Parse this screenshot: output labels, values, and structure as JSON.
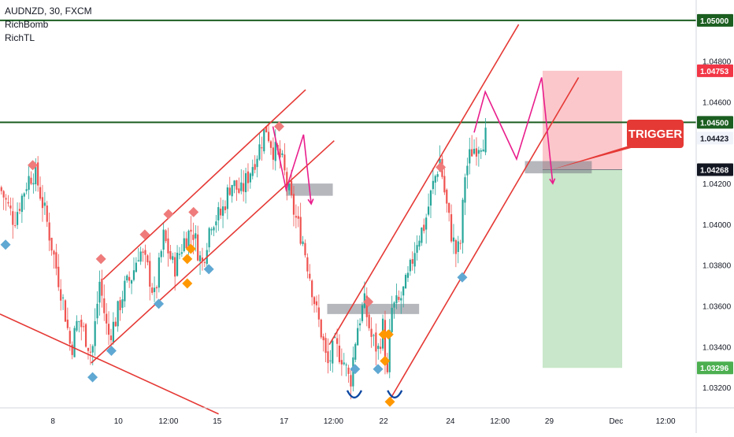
{
  "legend": {
    "symbol_line": "AUDNZD, 30, FXCM",
    "indicator_1": "RichBomb",
    "indicator_2": "RichTL"
  },
  "annotation": {
    "trigger_label": "TRIGGER"
  },
  "chart_data": {
    "type": "candlestick",
    "symbol": "AUDNZD",
    "timeframe": "30",
    "source": "FXCM",
    "ylim": [
      1.031,
      1.051
    ],
    "y_ticks": [
      1.032,
      1.034,
      1.036,
      1.038,
      1.04,
      1.042,
      1.046,
      1.048
    ],
    "y_tick_labels": [
      "1.03200",
      "1.03400",
      "1.03600",
      "1.03800",
      "1.04000",
      "1.04200",
      "1.04600",
      "1.04800"
    ],
    "x_ticks": [
      {
        "label": "8",
        "pos": 0.076
      },
      {
        "label": "10",
        "pos": 0.17
      },
      {
        "label": "12:00",
        "pos": 0.242
      },
      {
        "label": "15",
        "pos": 0.312
      },
      {
        "label": "17",
        "pos": 0.408
      },
      {
        "label": "12:00",
        "pos": 0.479
      },
      {
        "label": "22",
        "pos": 0.551
      },
      {
        "label": "24",
        "pos": 0.647
      },
      {
        "label": "12:00",
        "pos": 0.718
      },
      {
        "label": "29",
        "pos": 0.789
      },
      {
        "label": "Dec",
        "pos": 0.885
      },
      {
        "label": "12:00",
        "pos": 0.956
      }
    ],
    "price_tags": [
      {
        "label": "1.05000",
        "value": 1.05,
        "style": "green"
      },
      {
        "label": "1.04753",
        "value": 1.04753,
        "style": "red"
      },
      {
        "label": "1.04500",
        "value": 1.045,
        "style": "green"
      },
      {
        "label": "1.04423",
        "value": 1.04423,
        "style": "gray"
      },
      {
        "label": "1.04268",
        "value": 1.04268,
        "style": "dark"
      },
      {
        "label": "1.03296",
        "value": 1.03296,
        "style": "green"
      }
    ],
    "horizontal_levels": [
      1.05,
      1.045
    ],
    "position": {
      "entry": 1.04268,
      "stop": 1.04753,
      "target": 1.03296
    },
    "price_path": [
      [
        0.0,
        1.0418
      ],
      [
        0.02,
        1.0402
      ],
      [
        0.04,
        1.0422
      ],
      [
        0.05,
        1.0426
      ],
      [
        0.065,
        1.0405
      ],
      [
        0.08,
        1.038
      ],
      [
        0.092,
        1.036
      ],
      [
        0.102,
        1.0338
      ],
      [
        0.112,
        1.0354
      ],
      [
        0.122,
        1.0346
      ],
      [
        0.132,
        1.0336
      ],
      [
        0.143,
        1.0372
      ],
      [
        0.155,
        1.0345
      ],
      [
        0.165,
        1.0352
      ],
      [
        0.178,
        1.0368
      ],
      [
        0.19,
        1.0375
      ],
      [
        0.2,
        1.0388
      ],
      [
        0.212,
        1.0378
      ],
      [
        0.222,
        1.0364
      ],
      [
        0.235,
        1.0394
      ],
      [
        0.25,
        1.0378
      ],
      [
        0.264,
        1.0392
      ],
      [
        0.276,
        1.0398
      ],
      [
        0.29,
        1.038
      ],
      [
        0.303,
        1.0402
      ],
      [
        0.318,
        1.0405
      ],
      [
        0.332,
        1.0421
      ],
      [
        0.346,
        1.0415
      ],
      [
        0.36,
        1.0427
      ],
      [
        0.373,
        1.0438
      ],
      [
        0.382,
        1.0448
      ],
      [
        0.392,
        1.0437
      ],
      [
        0.404,
        1.0432
      ],
      [
        0.413,
        1.0418
      ],
      [
        0.423,
        1.0405
      ],
      [
        0.435,
        1.0392
      ],
      [
        0.445,
        1.0375
      ],
      [
        0.455,
        1.0356
      ],
      [
        0.463,
        1.0345
      ],
      [
        0.47,
        1.033
      ],
      [
        0.48,
        1.034
      ],
      [
        0.492,
        1.0335
      ],
      [
        0.503,
        1.0322
      ],
      [
        0.512,
        1.0348
      ],
      [
        0.523,
        1.0362
      ],
      [
        0.533,
        1.0345
      ],
      [
        0.543,
        1.0338
      ],
      [
        0.55,
        1.035
      ],
      [
        0.556,
        1.0322
      ],
      [
        0.562,
        1.0358
      ],
      [
        0.574,
        1.0362
      ],
      [
        0.587,
        1.0374
      ],
      [
        0.598,
        1.0392
      ],
      [
        0.61,
        1.04
      ],
      [
        0.621,
        1.0418
      ],
      [
        0.632,
        1.0432
      ],
      [
        0.64,
        1.0412
      ],
      [
        0.648,
        1.0396
      ],
      [
        0.655,
        1.0386
      ],
      [
        0.661,
        1.0389
      ],
      [
        0.668,
        1.0425
      ],
      [
        0.677,
        1.0436
      ],
      [
        0.688,
        1.044
      ],
      [
        0.7,
        1.0444
      ]
    ],
    "sell_markers": [
      [
        0.047,
        1.0429
      ],
      [
        0.145,
        1.0383
      ],
      [
        0.208,
        1.0395
      ],
      [
        0.242,
        1.0405
      ],
      [
        0.278,
        1.0406
      ],
      [
        0.401,
        1.0448
      ],
      [
        0.529,
        1.0362
      ],
      [
        0.633,
        1.0428
      ]
    ],
    "buy_markers": [
      [
        0.008,
        1.039
      ],
      [
        0.133,
        1.0325
      ],
      [
        0.16,
        1.0338
      ],
      [
        0.228,
        1.0361
      ],
      [
        0.3,
        1.0378
      ],
      [
        0.51,
        1.0329
      ],
      [
        0.543,
        1.0329
      ],
      [
        0.664,
        1.0374
      ]
    ],
    "orange_markers": [
      [
        0.269,
        1.0383
      ],
      [
        0.274,
        1.0388
      ],
      [
        0.269,
        1.0371
      ],
      [
        0.551,
        1.0346
      ],
      [
        0.558,
        1.0346
      ],
      [
        0.553,
        1.0333
      ],
      [
        0.56,
        1.0313
      ]
    ],
    "support_zones": [
      {
        "x0": 0.411,
        "x1": 0.478,
        "y_top": 1.042,
        "y_bot": 1.0414
      },
      {
        "x0": 0.47,
        "x1": 0.602,
        "y_top": 1.0361,
        "y_bot": 1.0356
      },
      {
        "x0": 0.754,
        "x1": 0.85,
        "y_top": 1.0431,
        "y_bot": 1.0425
      }
    ],
    "trend_lines": [
      [
        [
          0.0,
          1.0356
        ],
        [
          0.314,
          1.0307
        ]
      ],
      [
        [
          0.148,
          1.0373
        ],
        [
          0.439,
          1.0466
        ]
      ],
      [
        [
          0.131,
          1.0332
        ],
        [
          0.48,
          1.0441
        ]
      ],
      [
        [
          0.473,
          1.0341
        ],
        [
          0.745,
          1.0498
        ]
      ],
      [
        [
          0.56,
          1.0314
        ],
        [
          0.831,
          1.0472
        ]
      ]
    ],
    "projection_paths": [
      [
        [
          0.392,
          1.0448
        ],
        [
          0.411,
          1.0417
        ],
        [
          0.436,
          1.0444
        ],
        [
          0.447,
          1.041
        ]
      ],
      [
        [
          0.681,
          1.0445
        ],
        [
          0.697,
          1.0465
        ],
        [
          0.742,
          1.0432
        ],
        [
          0.778,
          1.0472
        ],
        [
          0.794,
          1.042
        ]
      ]
    ],
    "bowls": [
      [
        0.509,
        1.0317
      ],
      [
        0.567,
        1.0317
      ]
    ]
  }
}
